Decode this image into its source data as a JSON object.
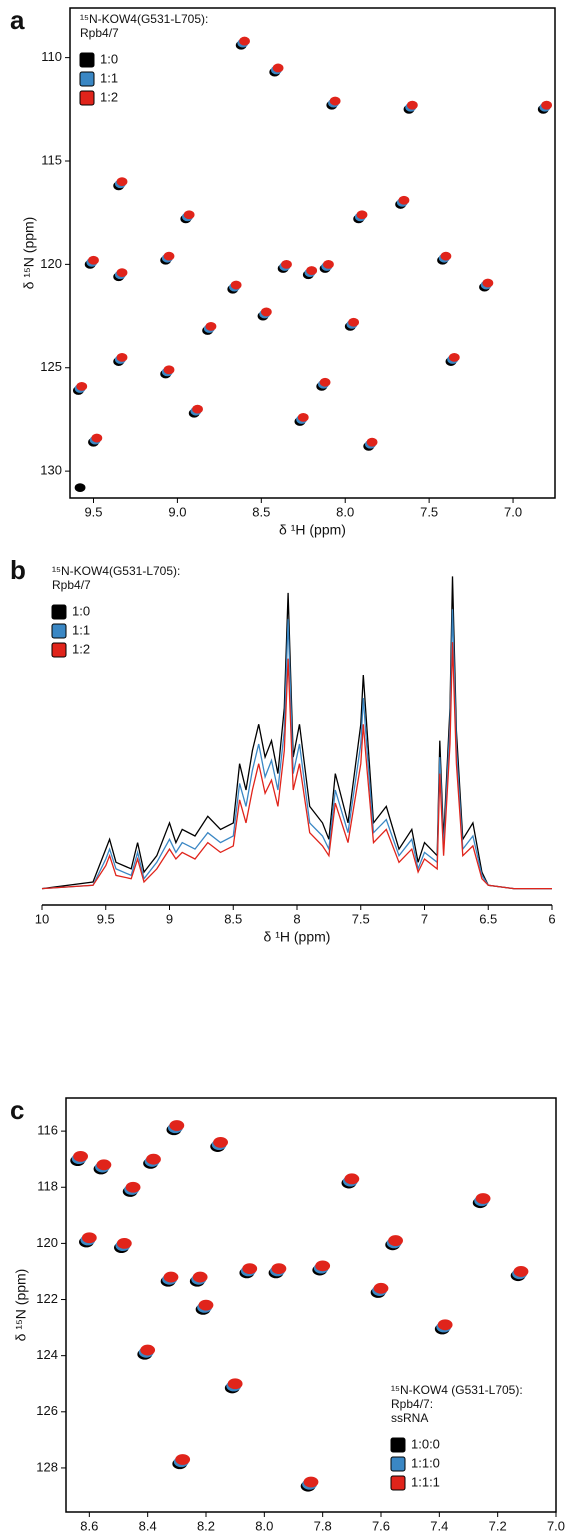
{
  "chart_data": [
    {
      "type": "scatter",
      "label": "a",
      "annotation": [
        "¹⁵N-KOW4(G531-L705):",
        "Rpb4/7"
      ],
      "xlabel": "δ ¹H (ppm)",
      "ylabel": "δ ¹⁵N (ppm)",
      "legend": "upper left",
      "xlim": [
        9.64,
        6.75
      ],
      "ylim": [
        131.3,
        107.6
      ],
      "xticks": [
        9.5,
        {
          "value": 9,
          "label": "9.0"
        },
        8.5,
        {
          "value": 8,
          "label": "8.0"
        },
        7.5,
        {
          "value": 7,
          "label": "7.0"
        }
      ],
      "yticks": [
        110,
        115,
        120,
        125,
        130
      ],
      "series": [
        {
          "name": "1:0",
          "color": "#000000",
          "x": [
            9.35,
            9.52,
            9.35,
            9.59,
            9.35,
            9.5,
            9.07,
            8.95,
            9.07,
            8.9,
            8.82,
            8.67,
            8.49,
            8.37,
            8.22,
            8.12,
            8.62,
            8.42,
            8.08,
            7.92,
            7.67,
            7.62,
            7.42,
            7.37,
            7.17,
            6.82,
            7.86,
            8.14,
            8.27,
            7.97,
            9.58
          ],
          "values": [
            116.2,
            120.0,
            120.6,
            126.1,
            124.7,
            128.6,
            119.8,
            117.8,
            125.3,
            127.2,
            123.2,
            121.2,
            122.5,
            120.2,
            120.5,
            120.2,
            109.4,
            110.7,
            112.3,
            117.8,
            117.1,
            112.5,
            119.8,
            124.7,
            121.1,
            112.5,
            128.8,
            125.9,
            127.6,
            123.0,
            130.8
          ]
        },
        {
          "name": "1:1",
          "color": "#3a87c4",
          "x": [
            9.34,
            9.51,
            9.34,
            9.58,
            9.34,
            9.49,
            9.06,
            8.94,
            9.06,
            8.89,
            8.81,
            8.66,
            8.48,
            8.36,
            8.21,
            8.11,
            8.61,
            8.41,
            8.07,
            7.91,
            7.66,
            7.61,
            7.41,
            7.36,
            7.16,
            6.81,
            7.85,
            8.13,
            8.26,
            7.96
          ],
          "values": [
            116.1,
            119.9,
            120.5,
            126.0,
            124.6,
            128.5,
            119.7,
            117.7,
            125.2,
            127.1,
            123.1,
            121.1,
            122.4,
            120.1,
            120.4,
            120.1,
            109.3,
            110.6,
            112.2,
            117.7,
            117.0,
            112.4,
            119.7,
            124.6,
            121.0,
            112.4,
            128.7,
            125.8,
            127.5,
            122.9
          ]
        },
        {
          "name": "1:2",
          "color": "#e0241b",
          "x": [
            9.33,
            9.5,
            9.33,
            9.57,
            9.33,
            9.48,
            9.05,
            8.93,
            9.05,
            8.88,
            8.8,
            8.65,
            8.47,
            8.35,
            8.2,
            8.1,
            8.6,
            8.4,
            8.06,
            7.9,
            7.65,
            7.6,
            7.4,
            7.35,
            7.15,
            6.8,
            7.84,
            8.12,
            8.25,
            7.95
          ],
          "values": [
            116.0,
            119.8,
            120.4,
            125.9,
            124.5,
            128.4,
            119.6,
            117.6,
            125.1,
            127.0,
            123.0,
            121.0,
            122.3,
            120.0,
            120.3,
            120.0,
            109.2,
            110.5,
            112.1,
            117.6,
            116.9,
            112.3,
            119.6,
            124.5,
            120.9,
            112.3,
            128.6,
            125.7,
            127.4,
            122.8
          ]
        }
      ]
    },
    {
      "type": "line",
      "label": "b",
      "annotation": [
        "¹⁵N-KOW4(G531-L705):",
        "Rpb4/7"
      ],
      "xlabel": "δ ¹H (ppm)",
      "legend": "upper left",
      "xlim": [
        10,
        6
      ],
      "ylim": [
        -5,
        100
      ],
      "xticks": [
        10,
        9.5,
        9,
        8.5,
        8,
        7.5,
        7,
        6.5,
        6
      ],
      "x": [
        10,
        9.6,
        9.5,
        9.47,
        9.42,
        9.3,
        9.25,
        9.2,
        9.1,
        9.0,
        8.95,
        8.9,
        8.8,
        8.7,
        8.6,
        8.5,
        8.45,
        8.4,
        8.35,
        8.3,
        8.25,
        8.2,
        8.15,
        8.1,
        8.07,
        8.03,
        7.98,
        7.9,
        7.8,
        7.75,
        7.7,
        7.6,
        7.5,
        7.48,
        7.45,
        7.4,
        7.3,
        7.2,
        7.1,
        7.05,
        7.0,
        6.9,
        6.88,
        6.85,
        6.8,
        6.78,
        6.75,
        6.7,
        6.62,
        6.55,
        6.5,
        6.3,
        6
      ],
      "series": [
        {
          "name": "1:0",
          "color": "#000000",
          "values": [
            0,
            2,
            12,
            15,
            8,
            6,
            14,
            5,
            10,
            20,
            14,
            18,
            16,
            22,
            18,
            20,
            38,
            30,
            42,
            50,
            40,
            45,
            35,
            55,
            90,
            40,
            50,
            25,
            20,
            15,
            35,
            20,
            50,
            65,
            48,
            20,
            25,
            12,
            18,
            8,
            14,
            10,
            45,
            15,
            55,
            95,
            48,
            15,
            20,
            5,
            1,
            0,
            0
          ]
        },
        {
          "name": "1:1",
          "color": "#3a87c4",
          "values": [
            0,
            1,
            9,
            12,
            6,
            4,
            11,
            3,
            8,
            15,
            11,
            14,
            12,
            17,
            14,
            16,
            32,
            25,
            36,
            44,
            34,
            39,
            30,
            48,
            82,
            35,
            44,
            20,
            16,
            12,
            30,
            17,
            44,
            58,
            42,
            17,
            21,
            10,
            15,
            6,
            11,
            8,
            40,
            12,
            50,
            85,
            43,
            12,
            16,
            4,
            1,
            0,
            0
          ]
        },
        {
          "name": "1:2",
          "color": "#e0241b",
          "values": [
            0,
            1,
            7,
            10,
            4,
            3,
            9,
            2,
            6,
            12,
            9,
            11,
            9,
            14,
            11,
            13,
            27,
            20,
            30,
            38,
            29,
            33,
            25,
            42,
            70,
            30,
            38,
            17,
            13,
            10,
            26,
            14,
            38,
            50,
            36,
            14,
            18,
            8,
            12,
            5,
            9,
            6,
            35,
            10,
            44,
            75,
            38,
            10,
            13,
            3,
            1,
            0,
            0
          ]
        }
      ]
    },
    {
      "type": "scatter",
      "label": "c",
      "annotation": [
        "¹⁵N-KOW4 (G531-L705):",
        "Rpb4/7:",
        "ssRNA"
      ],
      "xlabel": "δ ¹H (ppm)",
      "ylabel": "δ ¹⁵N (ppm)",
      "legend": "lower right",
      "xlim": [
        8.68,
        7.0
      ],
      "ylim": [
        129.57,
        114.82
      ],
      "xticks": [
        8.6,
        8.4,
        8.2,
        {
          "value": 8,
          "label": "8.0"
        },
        7.8,
        7.6,
        7.4,
        7.2,
        {
          "value": 7,
          "label": "7.0"
        }
      ],
      "yticks": [
        116,
        118,
        120,
        122,
        124,
        126,
        128
      ],
      "series": [
        {
          "name": "1:0:0",
          "color": "#000000",
          "x": [
            8.64,
            8.56,
            8.46,
            8.39,
            8.31,
            8.23,
            8.16,
            8.06,
            8.49,
            8.61,
            8.41,
            8.33,
            8.21,
            8.11,
            7.96,
            7.81,
            7.71,
            7.61,
            7.56,
            7.39,
            7.26,
            7.13,
            8.29,
            7.85
          ],
          "values": [
            117.05,
            117.35,
            118.15,
            117.15,
            115.95,
            121.35,
            116.55,
            121.05,
            120.15,
            119.95,
            123.95,
            121.35,
            122.35,
            125.15,
            121.05,
            120.95,
            117.85,
            121.75,
            120.05,
            123.05,
            118.55,
            121.15,
            127.85,
            128.65
          ]
        },
        {
          "name": "1:1:0",
          "color": "#3a87c4",
          "x": [
            8.635,
            8.555,
            8.455,
            8.385,
            8.305,
            8.225,
            8.155,
            8.055,
            8.485,
            8.605,
            8.405,
            8.325,
            8.205,
            8.105,
            7.955,
            7.805,
            7.705,
            7.605,
            7.555,
            7.385,
            7.255,
            7.125,
            8.285,
            7.845
          ],
          "values": [
            116.98,
            117.28,
            118.08,
            117.08,
            115.88,
            121.28,
            116.48,
            120.98,
            120.08,
            119.88,
            123.88,
            121.28,
            122.28,
            125.08,
            120.98,
            120.88,
            117.78,
            121.68,
            119.98,
            122.98,
            118.48,
            121.08,
            127.78,
            128.58
          ]
        },
        {
          "name": "1:1:1",
          "color": "#e0241b",
          "x": [
            8.63,
            8.55,
            8.45,
            8.38,
            8.3,
            8.22,
            8.15,
            8.05,
            8.48,
            8.6,
            8.4,
            8.32,
            8.2,
            8.1,
            7.95,
            7.8,
            7.7,
            7.6,
            7.55,
            7.38,
            7.25,
            7.12,
            8.28,
            7.84
          ],
          "values": [
            116.9,
            117.2,
            118.0,
            117.0,
            115.8,
            121.2,
            116.4,
            120.9,
            120.0,
            119.8,
            123.8,
            121.2,
            122.2,
            125.0,
            120.9,
            120.8,
            117.7,
            121.6,
            119.9,
            122.9,
            118.4,
            121.0,
            127.7,
            128.5
          ]
        }
      ]
    }
  ]
}
